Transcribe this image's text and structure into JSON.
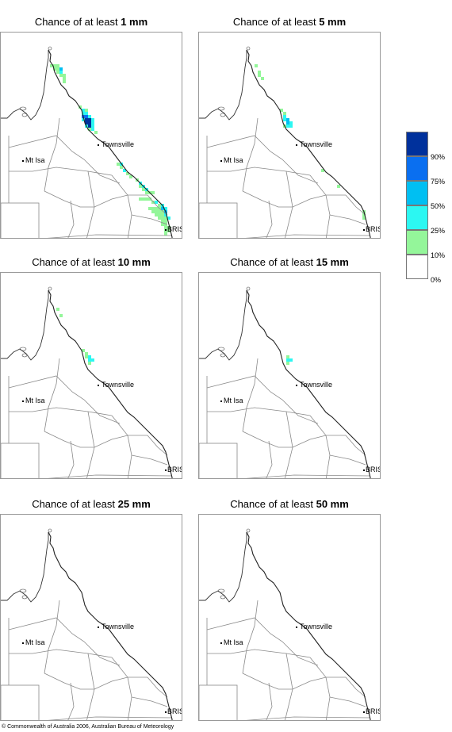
{
  "panels": [
    {
      "prefix": "Chance of at least ",
      "amount": "1 mm",
      "cells": [
        [
          62,
          60,
          "g"
        ],
        [
          66,
          60,
          "g"
        ],
        [
          70,
          60,
          "g"
        ],
        [
          66,
          64,
          "g"
        ],
        [
          70,
          64,
          "g"
        ],
        [
          74,
          64,
          "b"
        ],
        [
          70,
          68,
          "g"
        ],
        [
          74,
          68,
          "c"
        ],
        [
          74,
          72,
          "g"
        ],
        [
          78,
          72,
          "g"
        ],
        [
          78,
          76,
          "g"
        ],
        [
          78,
          80,
          "g"
        ],
        [
          98,
          112,
          "g"
        ],
        [
          102,
          116,
          "c"
        ],
        [
          106,
          116,
          "g"
        ],
        [
          102,
          120,
          "c"
        ],
        [
          106,
          120,
          "c"
        ],
        [
          102,
          124,
          "d"
        ],
        [
          106,
          124,
          "d"
        ],
        [
          110,
          124,
          "c"
        ],
        [
          102,
          128,
          "c"
        ],
        [
          106,
          128,
          "n"
        ],
        [
          110,
          128,
          "n"
        ],
        [
          114,
          128,
          "c"
        ],
        [
          106,
          132,
          "n"
        ],
        [
          110,
          132,
          "n"
        ],
        [
          114,
          132,
          "c"
        ],
        [
          106,
          136,
          "c"
        ],
        [
          110,
          136,
          "n"
        ],
        [
          114,
          136,
          "c"
        ],
        [
          110,
          140,
          "g"
        ],
        [
          114,
          140,
          "c"
        ],
        [
          118,
          144,
          "g"
        ],
        [
          146,
          184,
          "g"
        ],
        [
          150,
          184,
          "c"
        ],
        [
          150,
          188,
          "g"
        ],
        [
          154,
          192,
          "c"
        ],
        [
          158,
          196,
          "g"
        ],
        [
          162,
          200,
          "g"
        ],
        [
          170,
          204,
          "g"
        ],
        [
          174,
          208,
          "c"
        ],
        [
          174,
          212,
          "g"
        ],
        [
          178,
          212,
          "c"
        ],
        [
          178,
          216,
          "g"
        ],
        [
          182,
          216,
          "c"
        ],
        [
          182,
          220,
          "g"
        ],
        [
          186,
          220,
          "g"
        ],
        [
          190,
          220,
          "g"
        ],
        [
          174,
          228,
          "g"
        ],
        [
          178,
          228,
          "g"
        ],
        [
          182,
          228,
          "g"
        ],
        [
          186,
          228,
          "g"
        ],
        [
          190,
          232,
          "g"
        ],
        [
          194,
          232,
          "c"
        ],
        [
          198,
          236,
          "g"
        ],
        [
          202,
          236,
          "c"
        ],
        [
          186,
          240,
          "g"
        ],
        [
          190,
          240,
          "g"
        ],
        [
          194,
          240,
          "g"
        ],
        [
          198,
          240,
          "g"
        ],
        [
          202,
          240,
          "b"
        ],
        [
          206,
          240,
          "c"
        ],
        [
          190,
          244,
          "g"
        ],
        [
          194,
          244,
          "g"
        ],
        [
          198,
          244,
          "g"
        ],
        [
          202,
          244,
          "g"
        ],
        [
          206,
          244,
          "b"
        ],
        [
          194,
          248,
          "g"
        ],
        [
          198,
          248,
          "g"
        ],
        [
          202,
          248,
          "g"
        ],
        [
          206,
          248,
          "c"
        ],
        [
          198,
          252,
          "g"
        ],
        [
          202,
          252,
          "g"
        ],
        [
          206,
          252,
          "g"
        ],
        [
          210,
          252,
          "c"
        ],
        [
          202,
          256,
          "g"
        ],
        [
          206,
          256,
          "g"
        ],
        [
          202,
          260,
          "g"
        ],
        [
          206,
          260,
          "g"
        ],
        [
          206,
          264,
          "g"
        ],
        [
          210,
          264,
          "g"
        ],
        [
          206,
          268,
          "g"
        ],
        [
          210,
          268,
          "g"
        ],
        [
          206,
          272,
          "g"
        ]
      ]
    },
    {
      "prefix": "Chance of at least ",
      "amount": "5 mm",
      "cells": [
        [
          70,
          60,
          "g"
        ],
        [
          74,
          68,
          "g"
        ],
        [
          74,
          72,
          "g"
        ],
        [
          78,
          76,
          "g"
        ],
        [
          102,
          116,
          "g"
        ],
        [
          106,
          120,
          "g"
        ],
        [
          106,
          124,
          "c"
        ],
        [
          106,
          128,
          "c"
        ],
        [
          110,
          128,
          "b"
        ],
        [
          110,
          132,
          "b"
        ],
        [
          114,
          132,
          "c"
        ],
        [
          110,
          136,
          "c"
        ],
        [
          114,
          136,
          "c"
        ],
        [
          106,
          136,
          "g"
        ],
        [
          154,
          192,
          "g"
        ],
        [
          174,
          212,
          "g"
        ],
        [
          206,
          244,
          "g"
        ],
        [
          206,
          248,
          "g"
        ],
        [
          206,
          252,
          "g"
        ]
      ]
    },
    {
      "prefix": "Chance of at least ",
      "amount": "10 mm",
      "cells": [
        [
          70,
          64,
          "g"
        ],
        [
          74,
          72,
          "g"
        ],
        [
          102,
          116,
          "g"
        ],
        [
          106,
          120,
          "g"
        ],
        [
          106,
          124,
          "g"
        ],
        [
          110,
          124,
          "c"
        ],
        [
          110,
          128,
          "c"
        ],
        [
          114,
          128,
          "c"
        ],
        [
          110,
          132,
          "g"
        ]
      ]
    },
    {
      "prefix": "Chance of at least ",
      "amount": "15 mm",
      "cells": [
        [
          110,
          124,
          "g"
        ],
        [
          110,
          128,
          "c"
        ],
        [
          114,
          128,
          "c"
        ],
        [
          110,
          132,
          "g"
        ]
      ]
    },
    {
      "prefix": "Chance of at least ",
      "amount": "25 mm",
      "cells": []
    },
    {
      "prefix": "Chance of at least ",
      "amount": "50 mm",
      "cells": []
    }
  ],
  "cities": {
    "townsville": "Townsville",
    "mt_isa": "Mt Isa",
    "bris": "BRIS"
  },
  "legend": {
    "levels": [
      {
        "color": "#00319c",
        "label": "90%"
      },
      {
        "color": "#0a6ff0",
        "label": "75%"
      },
      {
        "color": "#00bff2",
        "label": "50%"
      },
      {
        "color": "#2cf7f2",
        "label": "25%"
      },
      {
        "color": "#94f69a",
        "label": "10%"
      },
      {
        "color": "#ffffff",
        "label": "0%"
      }
    ]
  },
  "colors": {
    "g": "#94f69a",
    "c": "#2cf7f2",
    "b": "#00bff2",
    "d": "#0a6ff0",
    "n": "#00319c"
  },
  "footer": "© Commonwealth of Australia 2006, Australian Bureau of Meteorology"
}
